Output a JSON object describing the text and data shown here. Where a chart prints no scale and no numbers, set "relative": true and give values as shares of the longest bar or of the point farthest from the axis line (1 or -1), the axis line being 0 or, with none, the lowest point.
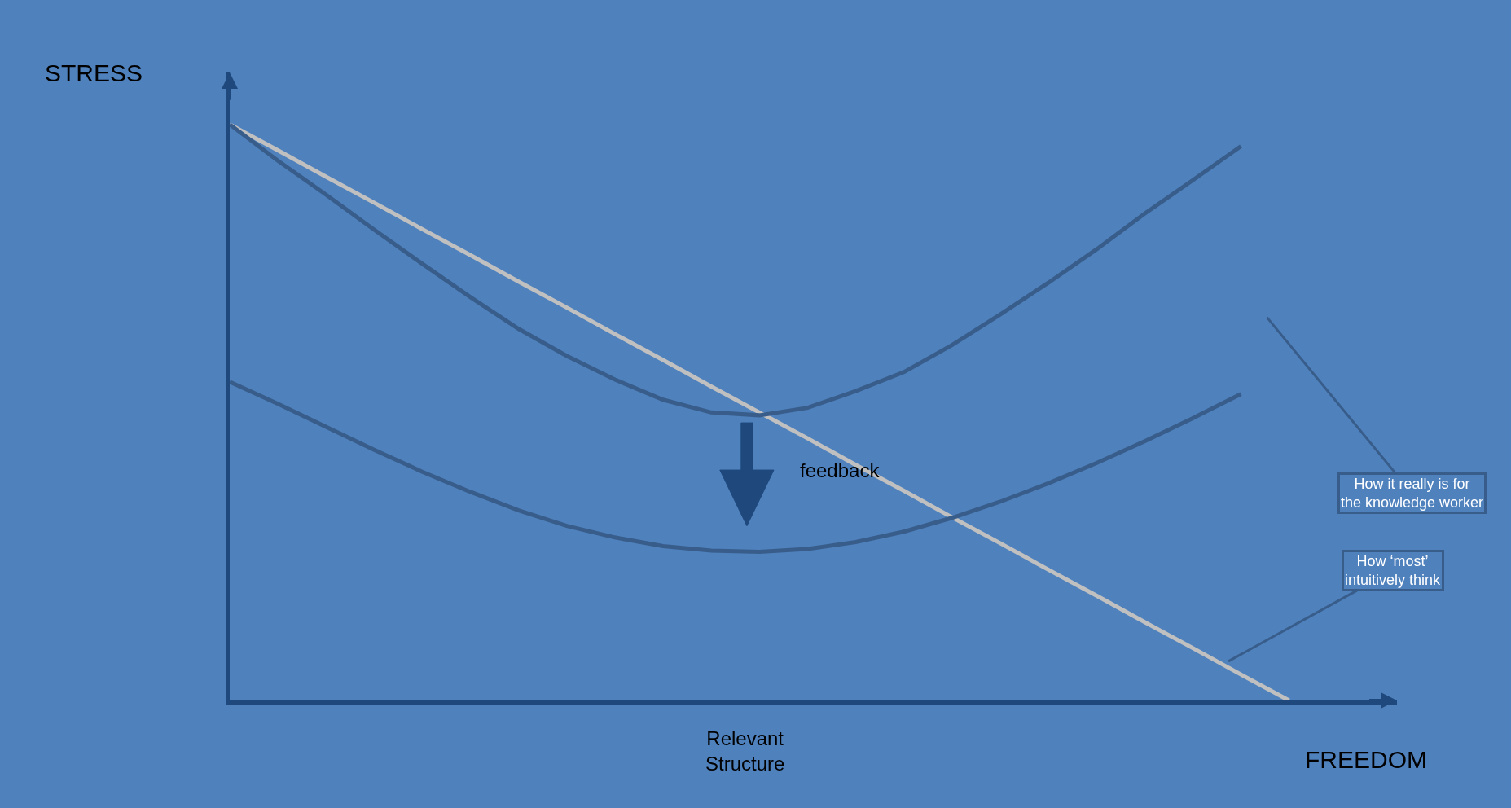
{
  "chart_data": {
    "type": "line",
    "relative": true,
    "xlabel": "FREEDOM",
    "ylabel": "STRESS",
    "categories": [
      null,
      null,
      null,
      null,
      null,
      null,
      null,
      null,
      null,
      null,
      null,
      null,
      null,
      null,
      null,
      null,
      null,
      null,
      null,
      null,
      null,
      null,
      null
    ],
    "series": [
      {
        "color": "#c0c0c0",
        "values": [
          1.0,
          0.955,
          0.909,
          0.864,
          0.818,
          0.773,
          0.727,
          0.682,
          0.636,
          0.591,
          0.545,
          0.5,
          0.455,
          0.409,
          0.364,
          0.318,
          0.273,
          0.227,
          0.182,
          0.136,
          0.091,
          0.045,
          0.0
        ]
      },
      {
        "color": "#385d8a",
        "values": [
          1.0,
          0.937,
          0.878,
          0.817,
          0.758,
          0.7,
          0.645,
          0.598,
          0.557,
          0.522,
          0.5,
          0.495,
          0.508,
          0.537,
          0.57,
          0.617,
          0.67,
          0.725,
          0.783,
          0.845,
          0.903,
          0.962,
          null
        ]
      },
      {
        "color": "#385d8a",
        "values": [
          0.553,
          0.515,
          0.475,
          0.435,
          0.397,
          0.362,
          0.33,
          0.303,
          0.283,
          0.268,
          0.26,
          0.258,
          0.263,
          0.275,
          0.293,
          0.317,
          0.345,
          0.377,
          0.412,
          0.45,
          0.49,
          0.532,
          null
        ]
      }
    ],
    "annotations": [
      "feedback",
      "Relevant Structure",
      "How it really is for the knowledge worker",
      "How ‘most’ intuitively think"
    ],
    "grid": false,
    "legend": false,
    "marker": "none",
    "line_style": "solid"
  }
}
